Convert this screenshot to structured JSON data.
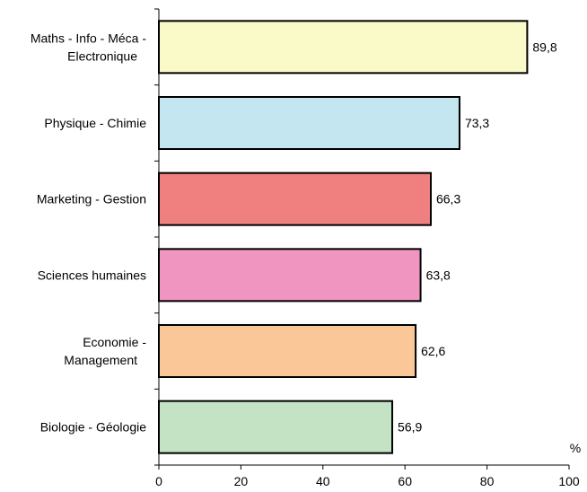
{
  "chart_data": {
    "type": "bar",
    "orientation": "horizontal",
    "title": "",
    "xlabel": "",
    "ylabel": "",
    "unit": "%",
    "xlim": [
      0,
      100
    ],
    "xticks": [
      0,
      20,
      40,
      60,
      80,
      100
    ],
    "grid": false,
    "legend": "none",
    "categories": [
      [
        "Maths - Info - Méca -",
        "Electronique"
      ],
      [
        "Physique - Chimie"
      ],
      [
        "Marketing - Gestion"
      ],
      [
        "Sciences humaines"
      ],
      [
        "Economie -",
        "Management"
      ],
      [
        "Biologie - Géologie"
      ]
    ],
    "values": [
      89.8,
      73.3,
      66.3,
      63.8,
      62.6,
      56.9
    ],
    "value_labels": [
      "89,8",
      "73,3",
      "66,3",
      "63,8",
      "62,6",
      "56,9"
    ],
    "colors": [
      "#fafac8",
      "#c4e6f0",
      "#f08080",
      "#f095c0",
      "#fac898",
      "#c4e2c4"
    ],
    "bar_edge_color": "#000000"
  }
}
